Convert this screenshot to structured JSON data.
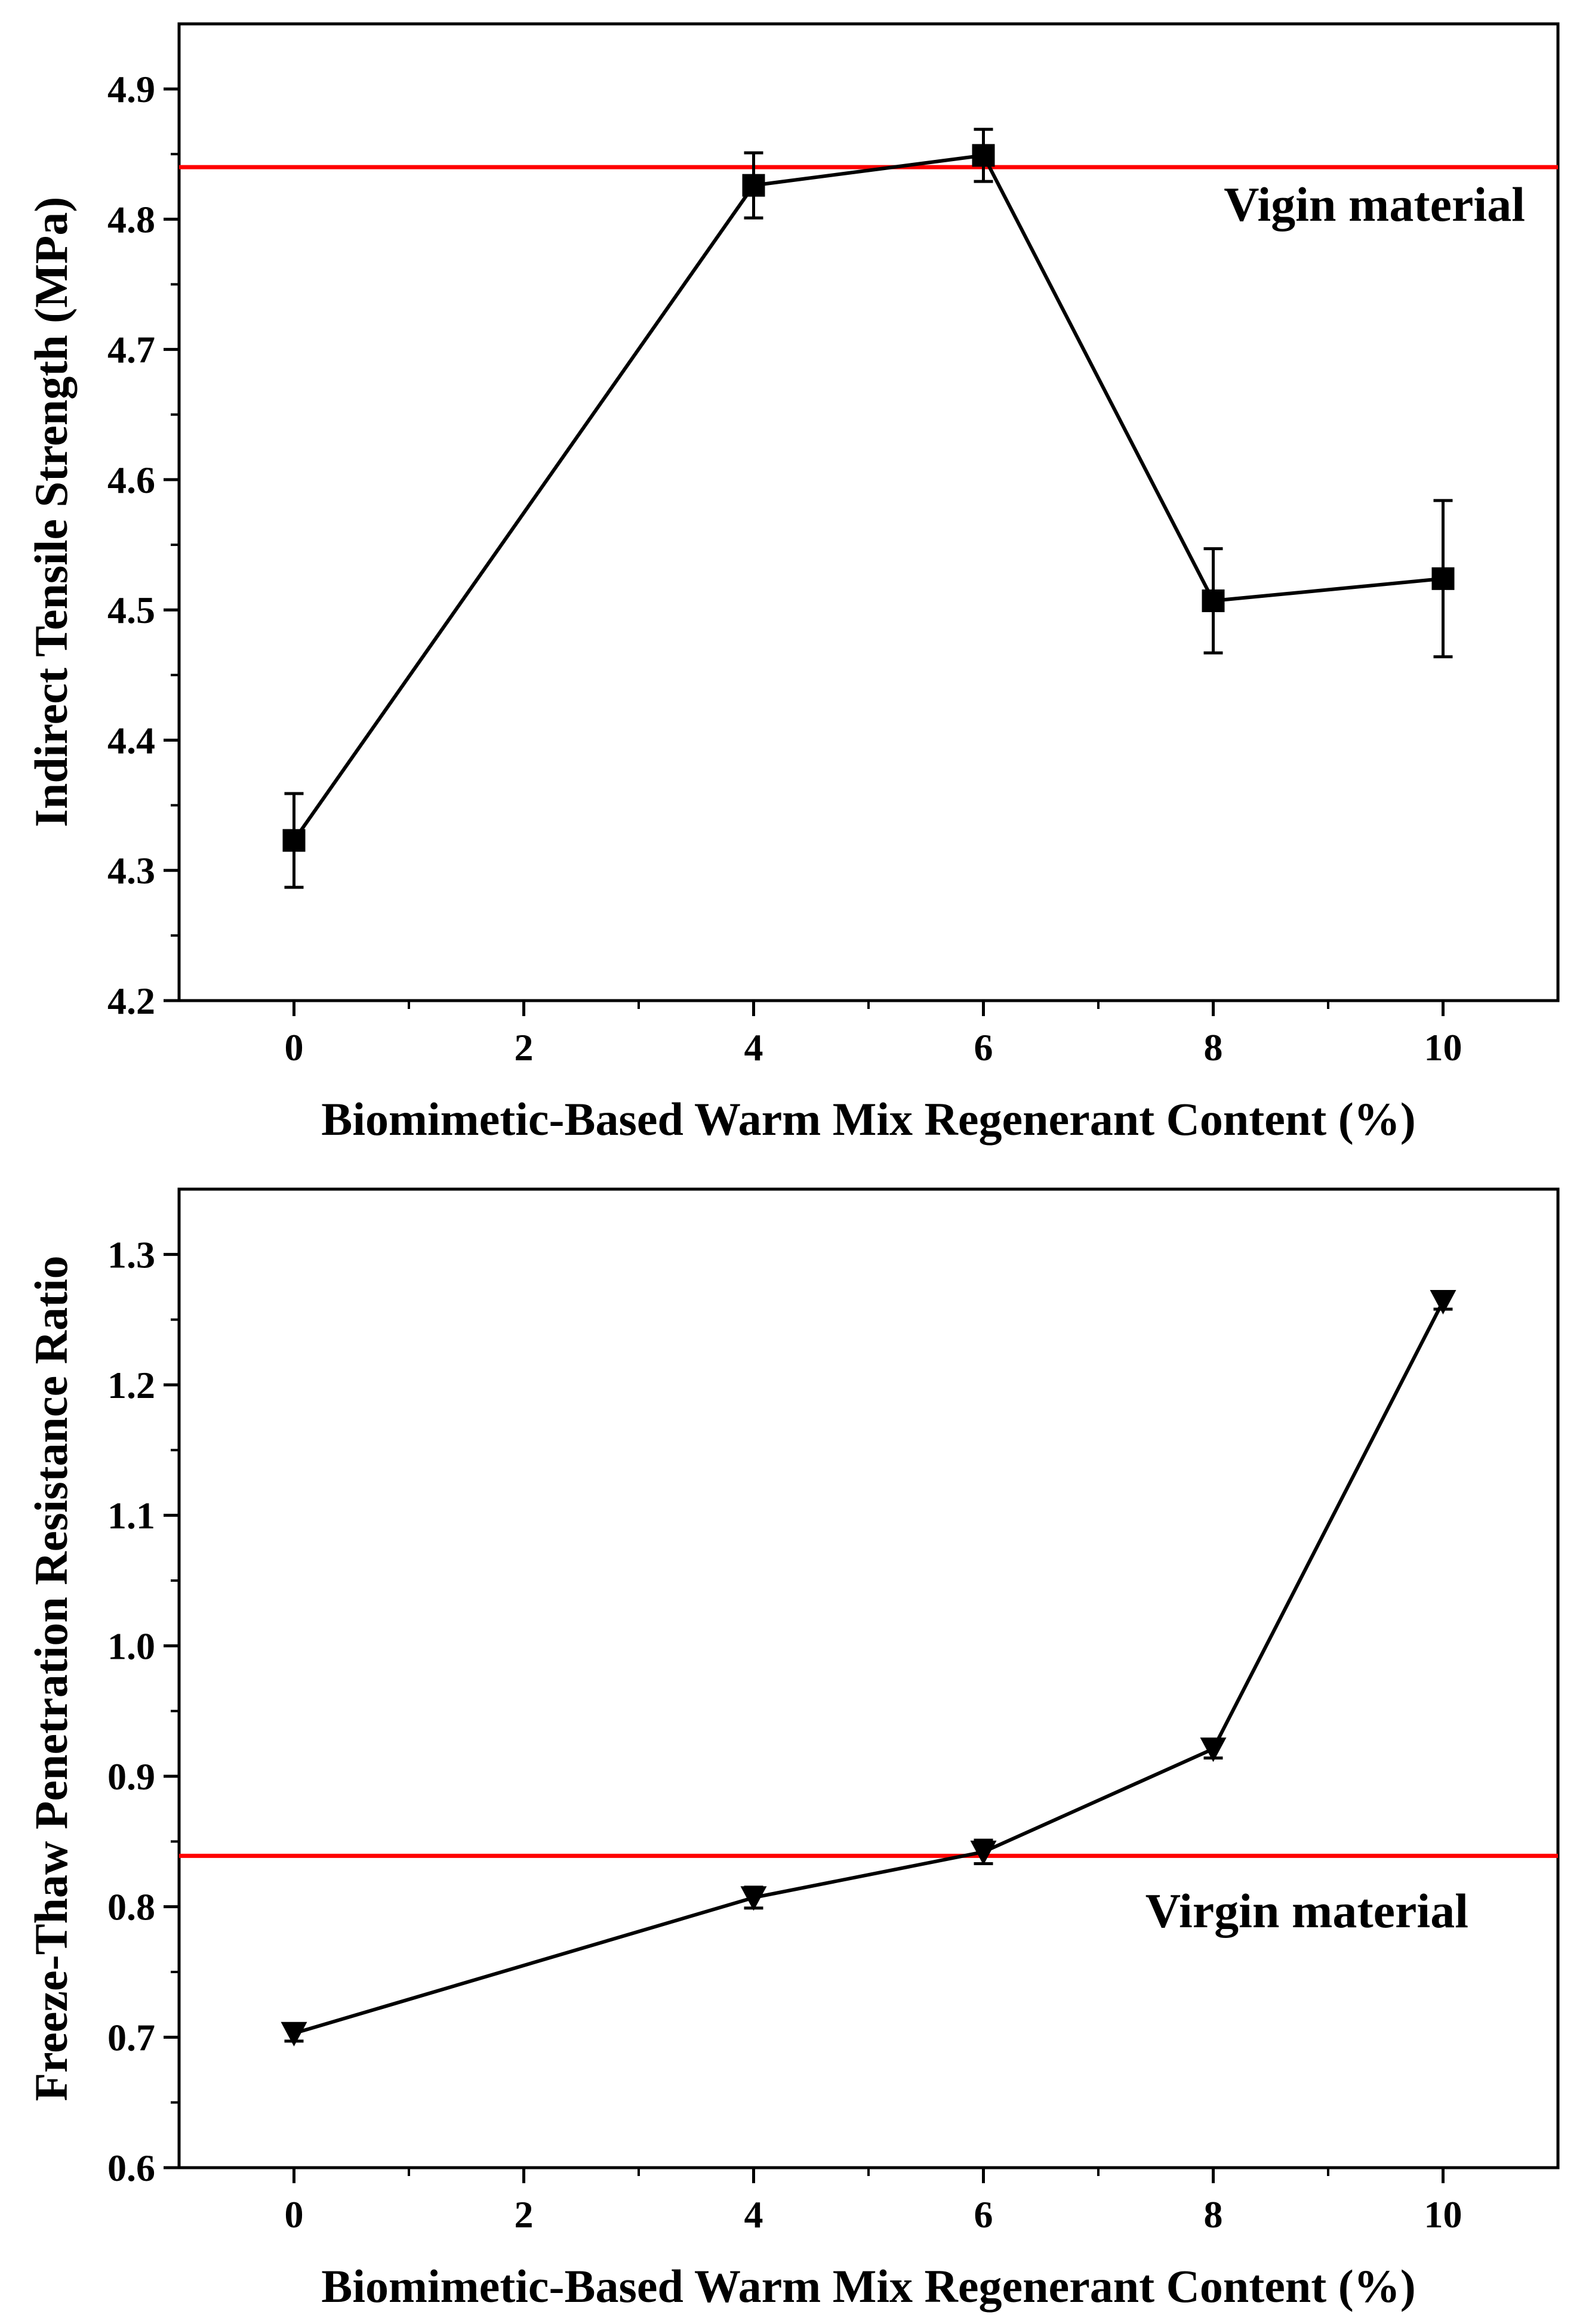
{
  "chart_data": [
    {
      "type": "line",
      "x": [
        0,
        4,
        6,
        8,
        10
      ],
      "series": [
        {
          "name": "Indirect Tensile Strength",
          "values": [
            4.323,
            4.826,
            4.849,
            4.507,
            4.524
          ],
          "errors": [
            0.036,
            0.025,
            0.02,
            0.04,
            0.06
          ],
          "marker": "square",
          "color": "#000000"
        }
      ],
      "reference_line": {
        "label": "Vigin material",
        "value": 4.84,
        "color": "#ff0000"
      },
      "xlabel": "Biomimetic-Based Warm Mix Regenerant Content (%)",
      "ylabel": "Indirect Tensile Strength (MPa)",
      "xlim": [
        -1,
        11
      ],
      "ylim": [
        4.2,
        4.95
      ],
      "xticks": [
        0,
        2,
        4,
        6,
        8,
        10
      ],
      "xtick_labels": [
        "0",
        "2",
        "4",
        "6",
        "8",
        "10"
      ],
      "yticks": [
        4.2,
        4.3,
        4.4,
        4.5,
        4.6,
        4.7,
        4.8,
        4.9
      ],
      "ytick_labels": [
        "4.2",
        "4.3",
        "4.4",
        "4.5",
        "4.6",
        "4.7",
        "4.8",
        "4.9"
      ],
      "grid": false
    },
    {
      "type": "line",
      "x": [
        0,
        4,
        6,
        8,
        10
      ],
      "series": [
        {
          "name": "Freeze-Thaw Penetration Resistance Ratio",
          "values": [
            0.703,
            0.807,
            0.842,
            0.921,
            1.264
          ],
          "errors": [
            0.006,
            0.008,
            0.009,
            0.007,
            0.006
          ],
          "marker": "triangle-down",
          "color": "#000000"
        }
      ],
      "reference_line": {
        "label": "Virgin material",
        "value": 0.839,
        "color": "#ff0000"
      },
      "xlabel": "Biomimetic-Based Warm Mix Regenerant Content (%)",
      "ylabel": "Freeze-Thaw Penetration Resistance Ratio",
      "xlim": [
        -1,
        11
      ],
      "ylim": [
        0.6,
        1.35
      ],
      "xticks": [
        0,
        2,
        4,
        6,
        8,
        10
      ],
      "xtick_labels": [
        "0",
        "2",
        "4",
        "6",
        "8",
        "10"
      ],
      "yticks": [
        0.6,
        0.7,
        0.8,
        0.9,
        1.0,
        1.1,
        1.2,
        1.3
      ],
      "ytick_labels": [
        "0.6",
        "0.7",
        "0.8",
        "0.9",
        "1.0",
        "1.1",
        "1.2",
        "1.3"
      ],
      "grid": false
    }
  ]
}
